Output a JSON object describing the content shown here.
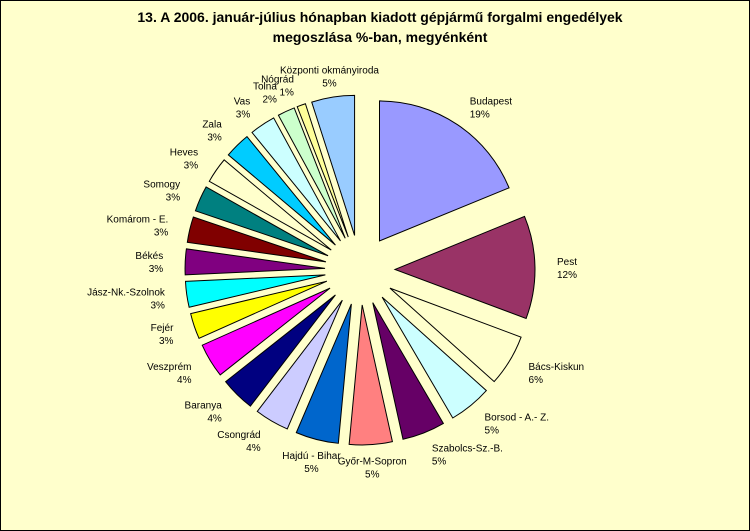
{
  "chart_data": {
    "type": "pie",
    "title": [
      "13. A  2006. január-július hónapban kiadott gépjármű forgalmi engedélyek",
      "megoszlása %-ban, megyénként"
    ],
    "categories": [
      "Budapest",
      "Pest",
      "Bács-Kiskun",
      "Borsod - A.- Z.",
      "Szabolcs-Sz.-B.",
      "Győr-M-Sopron",
      "Hajdú - Bihar",
      "Csongrád",
      "Baranya",
      "Veszprém",
      "Fejér",
      "Jász-Nk.-Szolnok",
      "Békés",
      "Komárom - E.",
      "Somogy",
      "Heves",
      "Zala",
      "Vas",
      "Tolna",
      "Nógrád",
      "Központi okmányiroda"
    ],
    "values": [
      19,
      12,
      6,
      5,
      5,
      5,
      5,
      4,
      4,
      4,
      3,
      3,
      3,
      3,
      3,
      3,
      3,
      3,
      2,
      1,
      5
    ],
    "value_labels": [
      "19%",
      "12%",
      "6%",
      "5%",
      "5%",
      "5%",
      "5%",
      "4%",
      "4%",
      "4%",
      "3%",
      "3%",
      "3%",
      "3%",
      "3%",
      "3%",
      "3%",
      "3%",
      "2%",
      "1%",
      "5%"
    ],
    "colors": [
      "#9999ff",
      "#993366",
      "#ffffcc",
      "#ccffff",
      "#660066",
      "#ff8080",
      "#0066cc",
      "#ccccff",
      "#000080",
      "#ff00ff",
      "#ffff00",
      "#00ffff",
      "#800080",
      "#800000",
      "#008080",
      "#ffffcc",
      "#00ccff",
      "#ccffff",
      "#ccffcc",
      "#ffff99",
      "#99ccff"
    ]
  }
}
